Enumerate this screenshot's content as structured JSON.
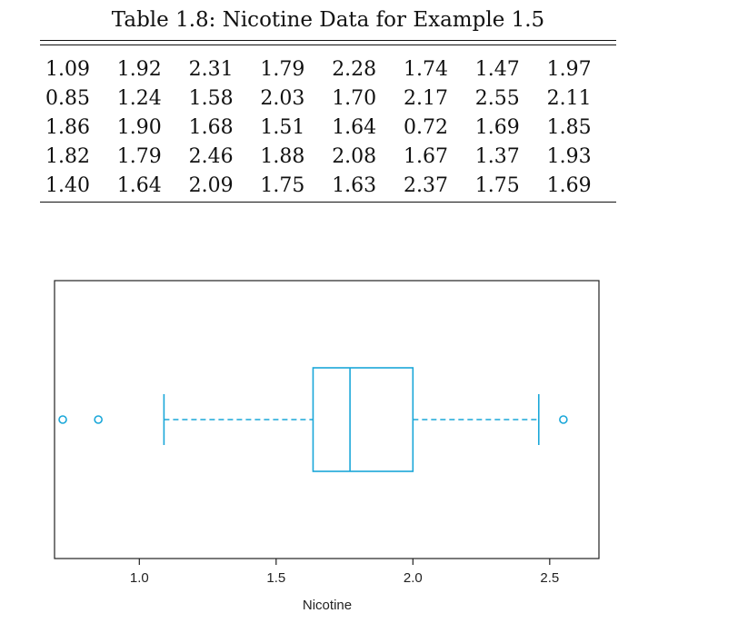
{
  "table": {
    "caption": "Table 1.8: Nicotine Data for Example 1.5",
    "rows": [
      [
        "1.09",
        "1.92",
        "2.31",
        "1.79",
        "2.28",
        "1.74",
        "1.47",
        "1.97"
      ],
      [
        "0.85",
        "1.24",
        "1.58",
        "2.03",
        "1.70",
        "2.17",
        "2.55",
        "2.11"
      ],
      [
        "1.86",
        "1.90",
        "1.68",
        "1.51",
        "1.64",
        "0.72",
        "1.69",
        "1.85"
      ],
      [
        "1.82",
        "1.79",
        "2.46",
        "1.88",
        "2.08",
        "1.67",
        "1.37",
        "1.93"
      ],
      [
        "1.40",
        "1.64",
        "2.09",
        "1.75",
        "1.63",
        "2.37",
        "1.75",
        "1.69"
      ]
    ]
  },
  "chart_data": {
    "type": "boxplot",
    "orientation": "horizontal",
    "title": "",
    "xlabel": "Nicotine",
    "ylabel": "",
    "xlim": [
      0.69,
      2.68
    ],
    "xticks": [
      1.0,
      1.5,
      2.0,
      2.5
    ],
    "xtick_labels": [
      "1.0",
      "1.5",
      "2.0",
      "2.5"
    ],
    "grid": false,
    "color": "#1aa7d9",
    "box": {
      "whisker_low": 1.09,
      "q1": 1.635,
      "median": 1.77,
      "q3": 2.0,
      "whisker_high": 2.46
    },
    "outliers": [
      0.72,
      0.85,
      2.55
    ]
  }
}
